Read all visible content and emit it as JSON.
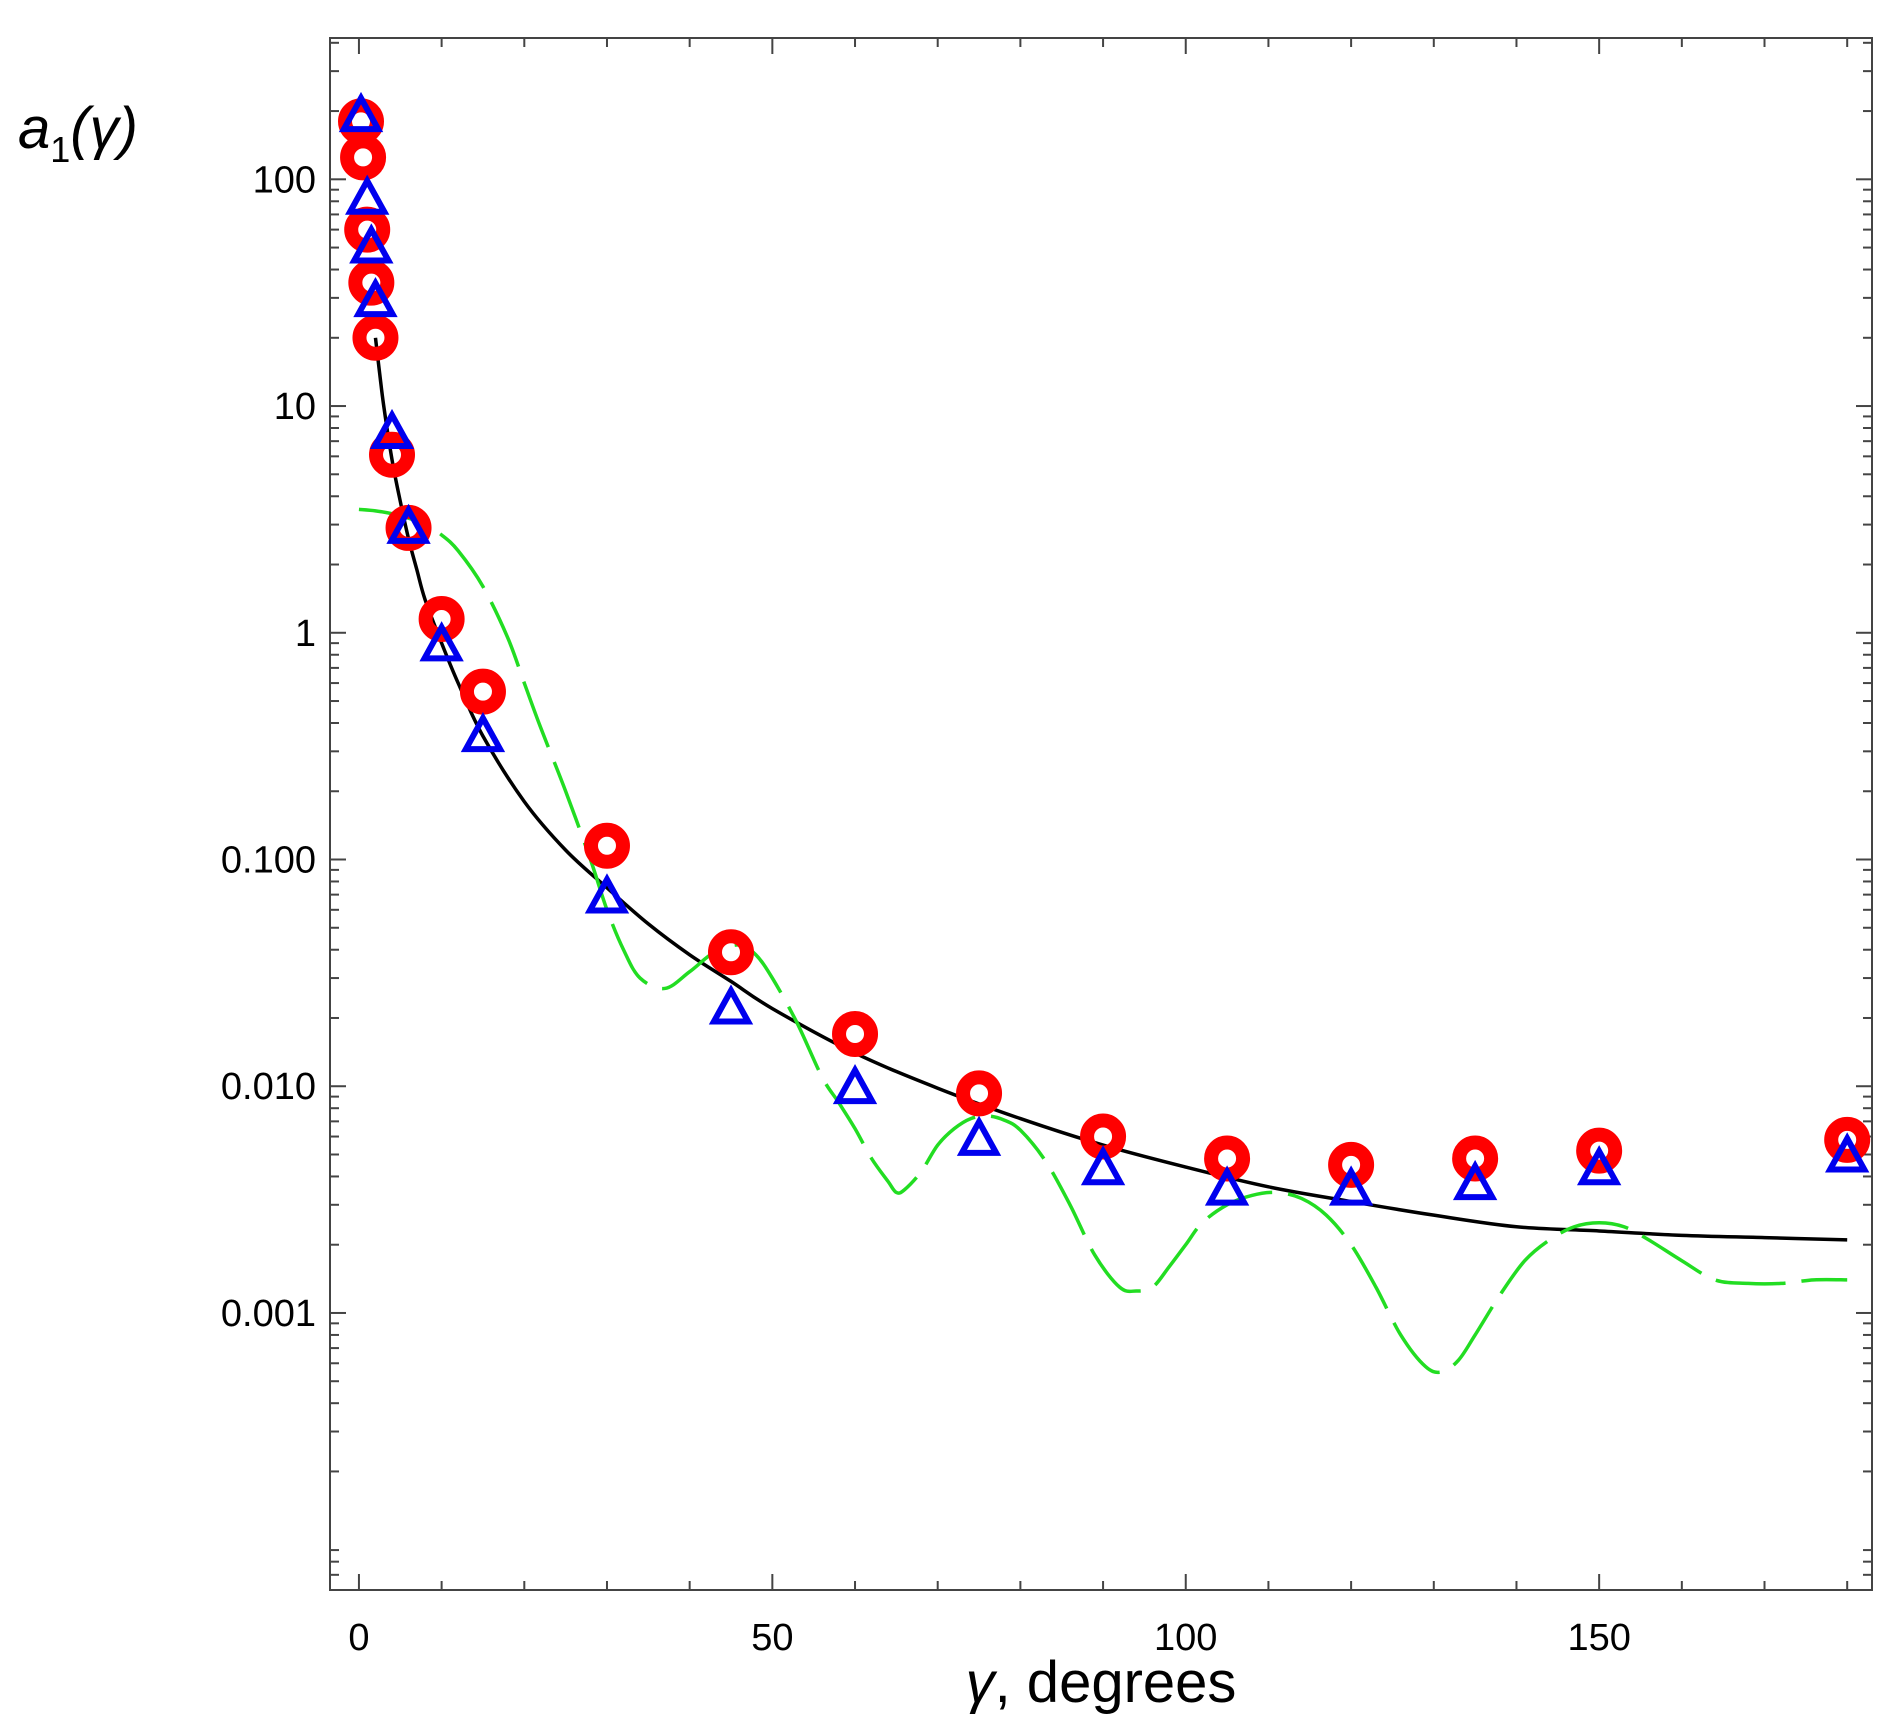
{
  "chart_data": {
    "type": "scatter",
    "title": "",
    "xlabel": {
      "symbol": "γ",
      "rest": ", degrees"
    },
    "ylabel": {
      "base": "a",
      "subscript": "1",
      "argument": "(γ)"
    },
    "xscale": "linear",
    "yscale": "log",
    "xlim": [
      -3.5,
      183
    ],
    "ylim": [
      6e-05,
      420
    ],
    "x_ticks": [
      0,
      50,
      100,
      150
    ],
    "x_tick_labels": [
      "0",
      "50",
      "100",
      "150"
    ],
    "y_ticks": [
      100,
      10,
      1,
      0.1,
      0.01,
      0.001
    ],
    "y_tick_labels": [
      "100",
      "10",
      "1",
      "0.100",
      "0.010",
      "0.001"
    ],
    "grid": false,
    "legend": "none",
    "series": [
      {
        "name": "solid curve",
        "kind": "line",
        "color": "#000000",
        "dash": "solid",
        "x": [
          2,
          2.5,
          3,
          4,
          5,
          6,
          7,
          8,
          10,
          12,
          15,
          20,
          25,
          30,
          35,
          40,
          45,
          50,
          60,
          70,
          80,
          90,
          100,
          110,
          120,
          130,
          140,
          150,
          160,
          170,
          180
        ],
        "y": [
          20,
          14,
          10,
          5.8,
          3.8,
          2.6,
          1.9,
          1.4,
          0.9,
          0.6,
          0.35,
          0.18,
          0.11,
          0.075,
          0.052,
          0.038,
          0.029,
          0.022,
          0.014,
          0.0098,
          0.0072,
          0.0055,
          0.0044,
          0.0036,
          0.0031,
          0.0027,
          0.0024,
          0.0023,
          0.0022,
          0.00215,
          0.0021
        ]
      },
      {
        "name": "dashed curve",
        "kind": "line",
        "color": "#22dd22",
        "dash": "long-dash",
        "x": [
          0,
          2,
          4,
          6,
          8,
          10,
          12,
          15,
          18,
          20,
          22,
          25,
          28,
          30,
          32,
          34,
          37,
          40,
          43,
          46,
          48,
          50,
          53,
          56,
          58,
          60,
          62,
          64,
          65,
          66,
          68,
          70,
          72,
          74,
          76,
          78,
          80,
          83,
          86,
          89,
          92,
          94,
          96,
          98,
          100,
          102,
          105,
          108,
          111,
          114,
          117,
          120,
          123,
          126,
          129,
          131,
          133,
          135,
          138,
          141,
          144,
          147,
          150,
          153,
          156,
          160,
          164,
          168,
          172,
          176,
          180
        ],
        "y": [
          3.5,
          3.45,
          3.35,
          3.2,
          3.0,
          2.7,
          2.3,
          1.6,
          0.95,
          0.6,
          0.38,
          0.2,
          0.1,
          0.06,
          0.04,
          0.03,
          0.027,
          0.032,
          0.039,
          0.042,
          0.038,
          0.03,
          0.019,
          0.011,
          0.0085,
          0.0065,
          0.0048,
          0.0038,
          0.0034,
          0.0035,
          0.0042,
          0.0055,
          0.0065,
          0.0072,
          0.0074,
          0.0071,
          0.0064,
          0.0047,
          0.003,
          0.0018,
          0.0013,
          0.00125,
          0.0013,
          0.0016,
          0.002,
          0.0025,
          0.003,
          0.0033,
          0.0034,
          0.0032,
          0.0027,
          0.002,
          0.0013,
          0.0008,
          0.00058,
          0.00055,
          0.00062,
          0.0008,
          0.0012,
          0.0017,
          0.0021,
          0.0024,
          0.0025,
          0.0024,
          0.0021,
          0.0017,
          0.0014,
          0.00135,
          0.00135,
          0.0014,
          0.0014
        ]
      },
      {
        "name": "circle markers",
        "kind": "scatter",
        "marker": "ring",
        "color": "#ff0000",
        "x": [
          0.25,
          0.5,
          1,
          1.5,
          2,
          4,
          6,
          10,
          15,
          30,
          45,
          60,
          75,
          90,
          105,
          120,
          135,
          150,
          180
        ],
        "y": [
          180,
          125,
          60,
          35,
          20,
          6.1,
          2.9,
          1.15,
          0.55,
          0.115,
          0.039,
          0.017,
          0.0093,
          0.006,
          0.0048,
          0.0045,
          0.0048,
          0.0052,
          0.0058
        ]
      },
      {
        "name": "triangle markers",
        "kind": "scatter",
        "marker": "triangle",
        "color": "#0000ee",
        "x": [
          0.25,
          1,
          1.5,
          2,
          4,
          6,
          10,
          15,
          30,
          45,
          60,
          75,
          90,
          105,
          120,
          135,
          150,
          180
        ],
        "y": [
          190,
          82,
          50,
          29,
          7.6,
          2.9,
          0.88,
          0.35,
          0.068,
          0.022,
          0.0098,
          0.0058,
          0.0043,
          0.0035,
          0.0035,
          0.0037,
          0.0043,
          0.0049
        ]
      }
    ]
  }
}
